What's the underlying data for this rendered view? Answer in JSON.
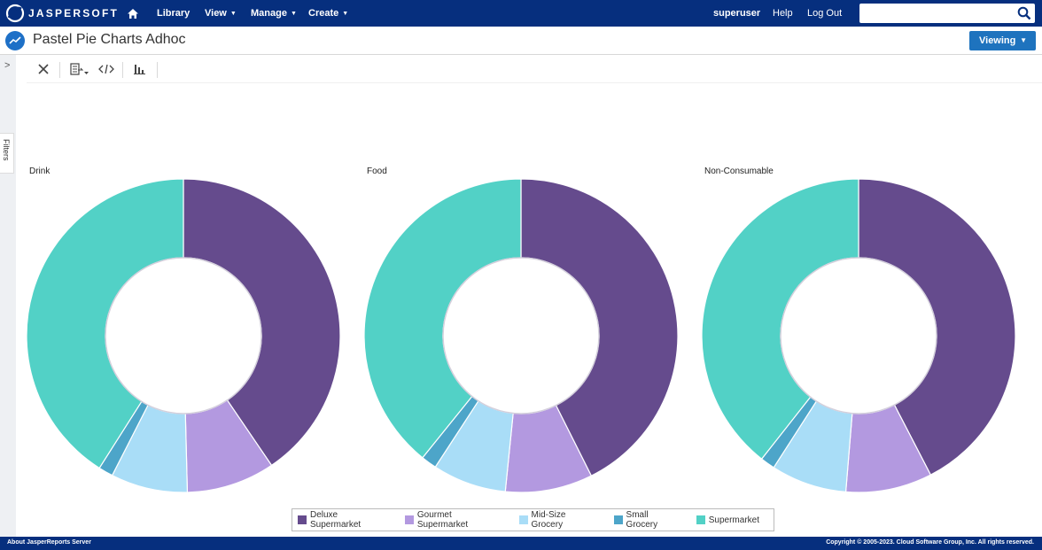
{
  "header": {
    "logo_text": "JASPERSOFT",
    "nav": [
      {
        "label": "Library",
        "caret": false
      },
      {
        "label": "View",
        "caret": true
      },
      {
        "label": "Manage",
        "caret": true
      },
      {
        "label": "Create",
        "caret": true
      }
    ],
    "user": "superuser",
    "help": "Help",
    "logout": "Log Out",
    "search_placeholder": ""
  },
  "titlebar": {
    "title": "Pastel Pie Charts Adhoc",
    "viewing_label": "Viewing"
  },
  "filters_label": "Filters",
  "colors": {
    "header_bg": "#062f7e",
    "Deluxe Supermarket": "#654b8d",
    "Gourmet Supermarket": "#b399e0",
    "Mid-Size Grocery": "#a9ddf7",
    "Small Grocery": "#4da5c9",
    "Supermarket": "#52d1c6"
  },
  "chart_data": [
    {
      "type": "pie",
      "title": "Drink",
      "donut": true,
      "categories": [
        "Deluxe Supermarket",
        "Gourmet Supermarket",
        "Mid-Size Grocery",
        "Small Grocery",
        "Supermarket"
      ],
      "values": [
        40.5,
        9.1,
        7.9,
        1.5,
        41.0
      ]
    },
    {
      "type": "pie",
      "title": "Food",
      "donut": true,
      "categories": [
        "Deluxe Supermarket",
        "Gourmet Supermarket",
        "Mid-Size Grocery",
        "Small Grocery",
        "Supermarket"
      ],
      "values": [
        42.6,
        9.0,
        7.6,
        1.6,
        39.2
      ]
    },
    {
      "type": "pie",
      "title": "Non-Consumable",
      "donut": true,
      "categories": [
        "Deluxe Supermarket",
        "Gourmet Supermarket",
        "Mid-Size Grocery",
        "Small Grocery",
        "Supermarket"
      ],
      "values": [
        42.4,
        8.9,
        7.8,
        1.5,
        39.4
      ]
    }
  ],
  "legend": [
    "Deluxe Supermarket",
    "Gourmet Supermarket",
    "Mid-Size Grocery",
    "Small Grocery",
    "Supermarket"
  ],
  "footer": {
    "left": "About JasperReports Server",
    "right": "Copyright © 2005-2023. Cloud Software Group, Inc. All rights reserved."
  }
}
